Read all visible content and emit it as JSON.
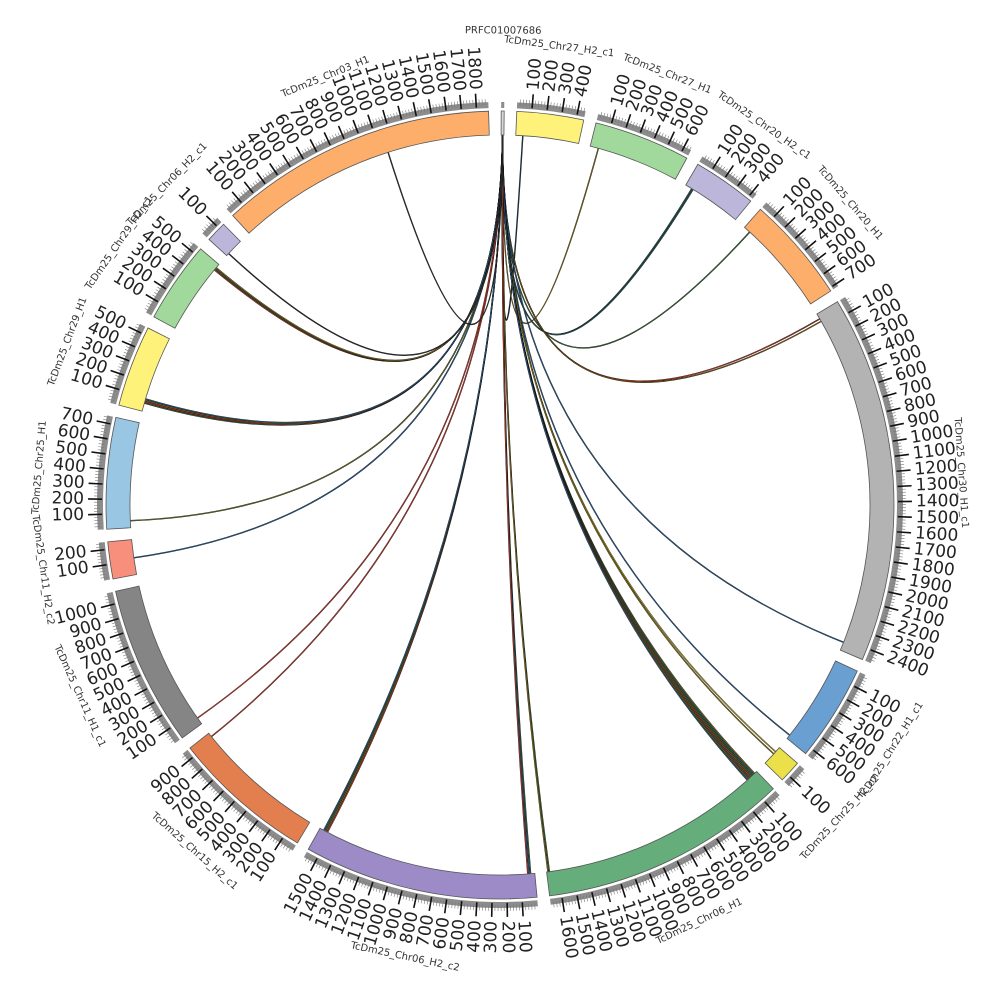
{
  "chart_data": {
    "type": "circos",
    "segments": [
      {
        "name": "PRFC01007686",
        "length": 20,
        "color": "#d8d8d8"
      },
      {
        "name": "TcDm25_Chr27_H2_c1",
        "length": 450,
        "color": "#fff27a"
      },
      {
        "name": "TcDm25_Chr27_H1",
        "length": 650,
        "color": "#a0d99b"
      },
      {
        "name": "TcDm25_Chr20_H2_c1",
        "length": 430,
        "color": "#bcb6db"
      },
      {
        "name": "TcDm25_Chr20_H1",
        "length": 720,
        "color": "#fdae6b"
      },
      {
        "name": "TcDm25_Chr30_H1_c1",
        "length": 2480,
        "color": "#b3b3b3"
      },
      {
        "name": "TcDm25_Chr22_H1_c1",
        "length": 650,
        "color": "#6a9fd2"
      },
      {
        "name": "TcDm25_Chr25_H2_c2",
        "length": 150,
        "color": "#ebe04a"
      },
      {
        "name": "TcDm25_Chr06_H1",
        "length": 1680,
        "color": "#65ad7b"
      },
      {
        "name": "TcDm25_Chr06_H2_c2",
        "length": 1580,
        "color": "#9c8bc6"
      },
      {
        "name": "TcDm25_Chr15_H2_c1",
        "length": 960,
        "color": "#e37f4e"
      },
      {
        "name": "TcDm25_Chr11_H1_c1",
        "length": 1080,
        "color": "#858585"
      },
      {
        "name": "TcDm25_Chr11_H2_c2",
        "length": 250,
        "color": "#f88f7c"
      },
      {
        "name": "TcDm25_Chr25_H1",
        "length": 750,
        "color": "#98c6e3"
      },
      {
        "name": "TcDm25_Chr29_H1",
        "length": 550,
        "color": "#fff27a"
      },
      {
        "name": "TcDm25_Chr29_H2_c1",
        "length": 550,
        "color": "#a0d99b"
      },
      {
        "name": "TcDm25_Chr06_H2_c1",
        "length": 140,
        "color": "#bcb6db"
      },
      {
        "name": "TcDm25_Chr03_H1",
        "length": 1880,
        "color": "#fdae6b"
      }
    ],
    "links": [
      {
        "from": "PRFC01007686",
        "to": "TcDm25_Chr27_H2_c1",
        "pos": 50,
        "color": "#1c3d5a"
      },
      {
        "from": "PRFC01007686",
        "to": "TcDm25_Chr27_H1",
        "pos": 60,
        "color": "#8a6d1a"
      },
      {
        "from": "PRFC01007686",
        "to": "TcDm25_Chr20_H2_c1",
        "pos": 50,
        "color": "#2a5c5a"
      },
      {
        "from": "PRFC01007686",
        "to": "TcDm25_Chr20_H2_c1",
        "pos": 60,
        "color": "#2a5c5a"
      },
      {
        "from": "PRFC01007686",
        "to": "TcDm25_Chr20_H1",
        "pos": 50,
        "color": "#3d6a3d"
      },
      {
        "from": "PRFC01007686",
        "to": "TcDm25_Chr30_H1_c1",
        "pos": 40,
        "color": "#c0392b"
      },
      {
        "from": "PRFC01007686",
        "to": "TcDm25_Chr30_H1_c1",
        "pos": 60,
        "color": "#7a5a10"
      },
      {
        "from": "PRFC01007686",
        "to": "TcDm25_Chr30_H1_c1",
        "pos": 2420,
        "color": "#2b5f8f"
      },
      {
        "from": "PRFC01007686",
        "to": "TcDm25_Chr22_H1_c1",
        "pos": 620,
        "color": "#2b5f8f"
      },
      {
        "from": "PRFC01007686",
        "to": "TcDm25_Chr25_H2_c2",
        "pos": 40,
        "color": "#b8a030"
      },
      {
        "from": "PRFC01007686",
        "to": "TcDm25_Chr25_H2_c2",
        "pos": 60,
        "color": "#8a7a10"
      },
      {
        "from": "PRFC01007686",
        "to": "TcDm25_Chr06_H1",
        "pos": 20,
        "color": "#8a7a10"
      },
      {
        "from": "PRFC01007686",
        "to": "TcDm25_Chr06_H1",
        "pos": 30,
        "color": "#3d6a8a"
      },
      {
        "from": "PRFC01007686",
        "to": "TcDm25_Chr06_H1",
        "pos": 40,
        "color": "#3d6a3d"
      },
      {
        "from": "PRFC01007686",
        "to": "TcDm25_Chr06_H1",
        "pos": 50,
        "color": "#6b6b2a"
      },
      {
        "from": "PRFC01007686",
        "to": "TcDm25_Chr06_H1",
        "pos": 60,
        "color": "#c0392b"
      },
      {
        "from": "PRFC01007686",
        "to": "TcDm25_Chr06_H1",
        "pos": 70,
        "color": "#3d6a3d"
      },
      {
        "from": "PRFC01007686",
        "to": "TcDm25_Chr06_H1",
        "pos": 80,
        "color": "#8a6d1a"
      },
      {
        "from": "PRFC01007686",
        "to": "TcDm25_Chr06_H1",
        "pos": 90,
        "color": "#2b5f8f"
      },
      {
        "from": "PRFC01007686",
        "to": "TcDm25_Chr06_H1",
        "pos": 1660,
        "color": "#3d6a3d"
      },
      {
        "from": "PRFC01007686",
        "to": "TcDm25_Chr06_H1",
        "pos": 1670,
        "color": "#8a6d1a"
      },
      {
        "from": "PRFC01007686",
        "to": "TcDm25_Chr06_H2_c2",
        "pos": 30,
        "color": "#3d6a3d"
      },
      {
        "from": "PRFC01007686",
        "to": "TcDm25_Chr06_H2_c2",
        "pos": 40,
        "color": "#2b5f8f"
      },
      {
        "from": "PRFC01007686",
        "to": "TcDm25_Chr06_H2_c2",
        "pos": 50,
        "color": "#c0392b"
      },
      {
        "from": "PRFC01007686",
        "to": "TcDm25_Chr06_H2_c2",
        "pos": 1520,
        "color": "#c0392b"
      },
      {
        "from": "PRFC01007686",
        "to": "TcDm25_Chr06_H2_c2",
        "pos": 1530,
        "color": "#8a6d1a"
      },
      {
        "from": "PRFC01007686",
        "to": "TcDm25_Chr06_H2_c2",
        "pos": 1540,
        "color": "#3d6a3d"
      },
      {
        "from": "PRFC01007686",
        "to": "TcDm25_Chr06_H2_c2",
        "pos": 1550,
        "color": "#2b5f8f"
      },
      {
        "from": "PRFC01007686",
        "to": "TcDm25_Chr15_H2_c1",
        "pos": 930,
        "color": "#c0392b"
      },
      {
        "from": "PRFC01007686",
        "to": "TcDm25_Chr11_H1_c1",
        "pos": 50,
        "color": "#c0392b"
      },
      {
        "from": "PRFC01007686",
        "to": "TcDm25_Chr11_H2_c2",
        "pos": 120,
        "color": "#2b5f8f"
      },
      {
        "from": "PRFC01007686",
        "to": "TcDm25_Chr25_H1",
        "pos": 50,
        "color": "#6b6b2a"
      },
      {
        "from": "PRFC01007686",
        "to": "TcDm25_Chr29_H1",
        "pos": 60,
        "color": "#3d6a3d"
      },
      {
        "from": "PRFC01007686",
        "to": "TcDm25_Chr29_H1",
        "pos": 70,
        "color": "#c0392b"
      },
      {
        "from": "PRFC01007686",
        "to": "TcDm25_Chr29_H1",
        "pos": 80,
        "color": "#8a6d1a"
      },
      {
        "from": "PRFC01007686",
        "to": "TcDm25_Chr29_H1",
        "pos": 90,
        "color": "#2b5f8f"
      },
      {
        "from": "PRFC01007686",
        "to": "TcDm25_Chr29_H2_c1",
        "pos": 500,
        "color": "#c0392b"
      },
      {
        "from": "PRFC01007686",
        "to": "TcDm25_Chr29_H2_c1",
        "pos": 510,
        "color": "#3d6a3d"
      },
      {
        "from": "PRFC01007686",
        "to": "TcDm25_Chr29_H2_c1",
        "pos": 520,
        "color": "#8a6d1a"
      },
      {
        "from": "PRFC01007686",
        "to": "TcDm25_Chr06_H2_c1",
        "pos": 20,
        "color": "#333333"
      },
      {
        "from": "PRFC01007686",
        "to": "TcDm25_Chr03_H1",
        "pos": 1150,
        "color": "#333333"
      }
    ]
  }
}
